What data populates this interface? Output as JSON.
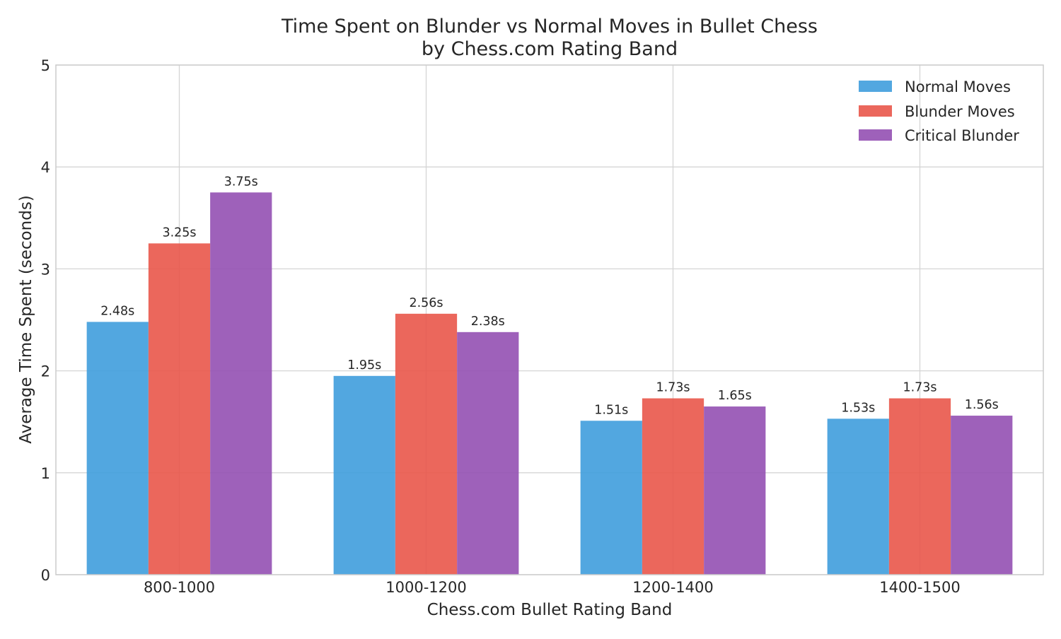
{
  "chart_data": {
    "type": "bar",
    "title": "Time Spent on Blunder vs Normal Moves in Bullet Chess",
    "subtitle": "by Chess.com Rating Band",
    "xlabel": "Chess.com Bullet Rating Band",
    "ylabel": "Average Time Spent (seconds)",
    "ylim": [
      0,
      5
    ],
    "yticks": [
      "0",
      "1",
      "2",
      "3",
      "4",
      "5"
    ],
    "grid": true,
    "legend_position": "top-right",
    "value_suffix": "s",
    "categories": [
      "800-1000",
      "1000-1200",
      "1200-1400",
      "1400-1500"
    ],
    "series": [
      {
        "name": "Normal Moves",
        "color": "#3f9ddd",
        "values": [
          2.48,
          1.95,
          1.51,
          1.53
        ],
        "labels": [
          "2.48s",
          "1.95s",
          "1.51s",
          "1.53s"
        ]
      },
      {
        "name": "Blunder Moves",
        "color": "#e9564a",
        "values": [
          3.25,
          2.56,
          1.73,
          1.73
        ],
        "labels": [
          "3.25s",
          "2.56s",
          "1.73s",
          "1.73s"
        ]
      },
      {
        "name": "Critical Blunder",
        "color": "#9350b2",
        "values": [
          3.75,
          2.38,
          1.65,
          1.56
        ],
        "labels": [
          "3.75s",
          "2.38s",
          "1.65s",
          "1.56s"
        ]
      }
    ]
  }
}
